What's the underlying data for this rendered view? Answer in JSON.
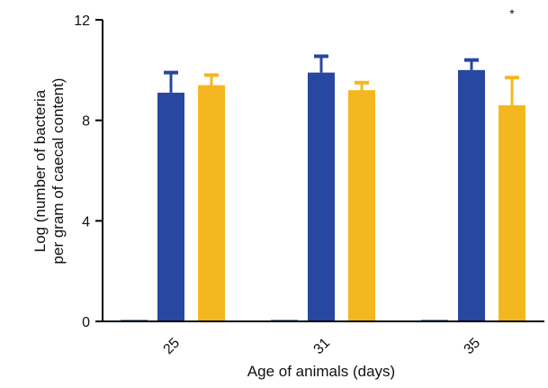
{
  "chart_data": {
    "type": "bar",
    "title": "",
    "xlabel": "Age of animals (days)",
    "ylabel_lines": [
      "Log (number of bacteria",
      "per gram of caecal content)"
    ],
    "categories": [
      "25",
      "31",
      "35"
    ],
    "ylim": [
      0,
      12
    ],
    "yticks": [
      0,
      4,
      8,
      12
    ],
    "grid": false,
    "legend": "none",
    "series": [
      {
        "color": "#6b95b5",
        "values": [
          0,
          0,
          0
        ]
      },
      {
        "color": "#2747a0",
        "values": [
          9.1,
          9.9,
          10.0
        ],
        "errors": [
          0.8,
          0.65,
          0.4
        ]
      },
      {
        "color": "#f4b71f",
        "values": [
          9.4,
          9.2,
          8.6
        ],
        "errors": [
          0.4,
          0.3,
          1.1
        ]
      }
    ],
    "annotations": [
      {
        "text": "*",
        "category": "35",
        "series_index": 2
      }
    ]
  }
}
